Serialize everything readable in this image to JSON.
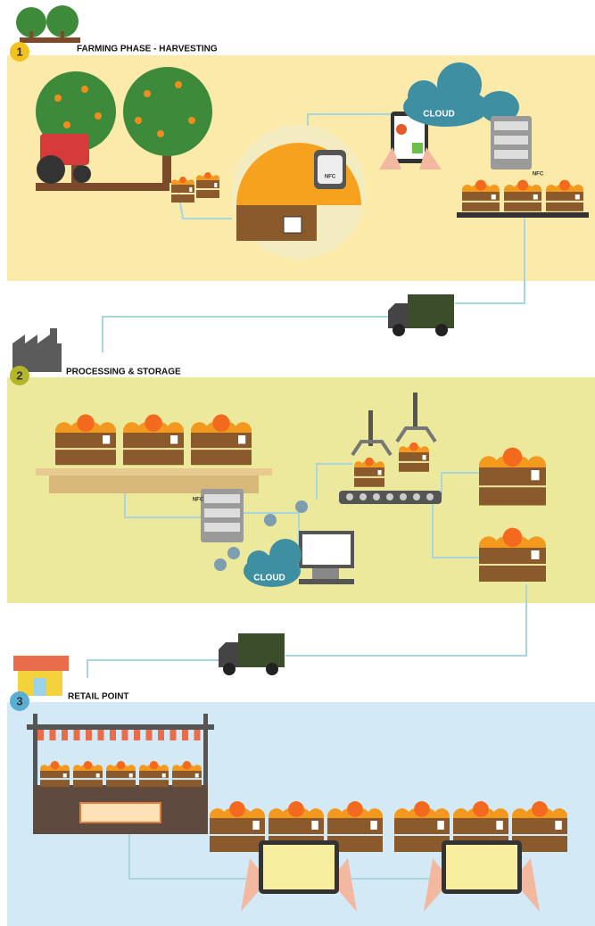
{
  "phases": [
    {
      "number": "1",
      "title": "FARMING PHASE - HARVESTING",
      "cloud_label": "CLOUD",
      "nfc_labels": [
        "NFC",
        "NFC"
      ]
    },
    {
      "number": "2",
      "title": "PROCESSING & STORAGE",
      "cloud_label": "CLOUD",
      "nfc_labels": [
        "NFC"
      ]
    },
    {
      "number": "3",
      "title": "RETAIL POINT"
    }
  ]
}
